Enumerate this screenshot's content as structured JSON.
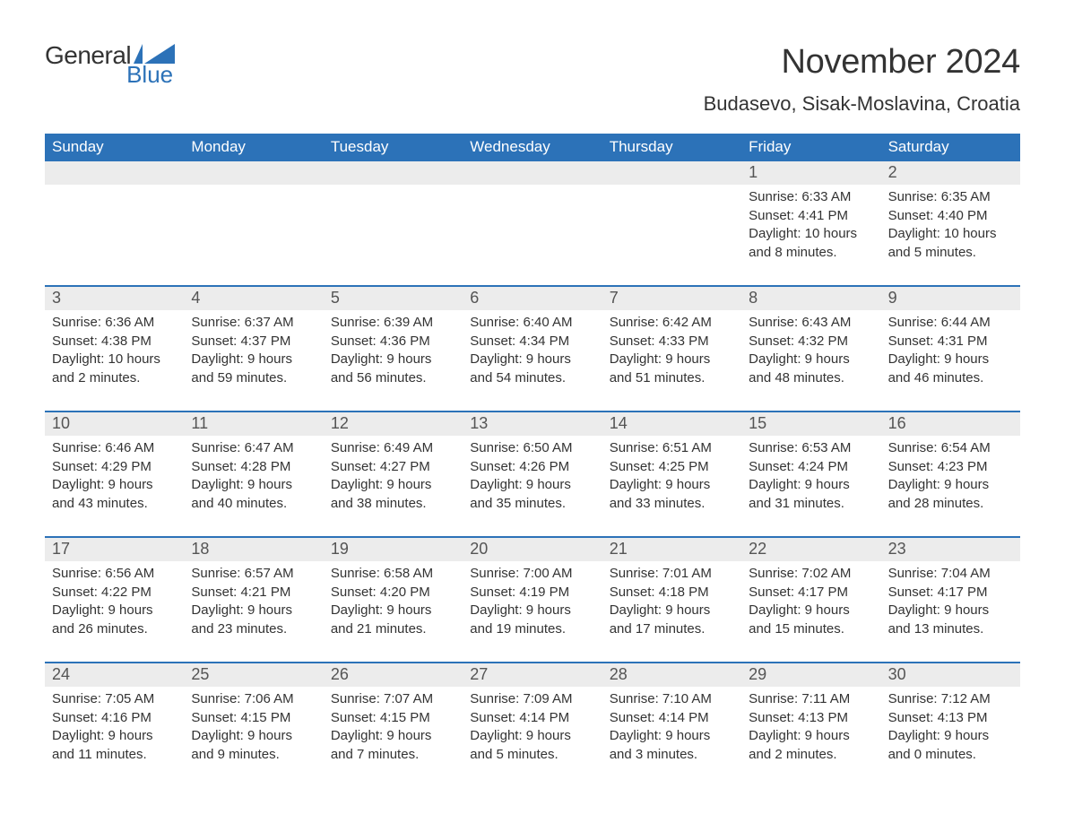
{
  "branding": {
    "logo_word1": "General",
    "logo_word2": "Blue",
    "logo_word1_color": "#333333",
    "logo_word2_color": "#2C72B8",
    "flag_color": "#2C72B8"
  },
  "header": {
    "month_title": "November 2024",
    "location": "Budasevo, Sisak-Moslavina, Croatia"
  },
  "colors": {
    "header_bg": "#2C72B8",
    "header_text": "#ffffff",
    "daynum_bg": "#ececec",
    "daynum_text": "#545454",
    "body_text": "#333333",
    "divider": "#2C72B8",
    "page_bg": "#ffffff"
  },
  "typography": {
    "month_title_fontsize": 38,
    "location_fontsize": 22,
    "weekday_fontsize": 17,
    "daynum_fontsize": 18,
    "body_fontsize": 15
  },
  "calendar": {
    "type": "table",
    "columns": [
      "Sunday",
      "Monday",
      "Tuesday",
      "Wednesday",
      "Thursday",
      "Friday",
      "Saturday"
    ],
    "weeks": [
      [
        {
          "day": "",
          "sunrise": "",
          "sunset": "",
          "daylight": ""
        },
        {
          "day": "",
          "sunrise": "",
          "sunset": "",
          "daylight": ""
        },
        {
          "day": "",
          "sunrise": "",
          "sunset": "",
          "daylight": ""
        },
        {
          "day": "",
          "sunrise": "",
          "sunset": "",
          "daylight": ""
        },
        {
          "day": "",
          "sunrise": "",
          "sunset": "",
          "daylight": ""
        },
        {
          "day": "1",
          "sunrise": "Sunrise: 6:33 AM",
          "sunset": "Sunset: 4:41 PM",
          "daylight": "Daylight: 10 hours and 8 minutes."
        },
        {
          "day": "2",
          "sunrise": "Sunrise: 6:35 AM",
          "sunset": "Sunset: 4:40 PM",
          "daylight": "Daylight: 10 hours and 5 minutes."
        }
      ],
      [
        {
          "day": "3",
          "sunrise": "Sunrise: 6:36 AM",
          "sunset": "Sunset: 4:38 PM",
          "daylight": "Daylight: 10 hours and 2 minutes."
        },
        {
          "day": "4",
          "sunrise": "Sunrise: 6:37 AM",
          "sunset": "Sunset: 4:37 PM",
          "daylight": "Daylight: 9 hours and 59 minutes."
        },
        {
          "day": "5",
          "sunrise": "Sunrise: 6:39 AM",
          "sunset": "Sunset: 4:36 PM",
          "daylight": "Daylight: 9 hours and 56 minutes."
        },
        {
          "day": "6",
          "sunrise": "Sunrise: 6:40 AM",
          "sunset": "Sunset: 4:34 PM",
          "daylight": "Daylight: 9 hours and 54 minutes."
        },
        {
          "day": "7",
          "sunrise": "Sunrise: 6:42 AM",
          "sunset": "Sunset: 4:33 PM",
          "daylight": "Daylight: 9 hours and 51 minutes."
        },
        {
          "day": "8",
          "sunrise": "Sunrise: 6:43 AM",
          "sunset": "Sunset: 4:32 PM",
          "daylight": "Daylight: 9 hours and 48 minutes."
        },
        {
          "day": "9",
          "sunrise": "Sunrise: 6:44 AM",
          "sunset": "Sunset: 4:31 PM",
          "daylight": "Daylight: 9 hours and 46 minutes."
        }
      ],
      [
        {
          "day": "10",
          "sunrise": "Sunrise: 6:46 AM",
          "sunset": "Sunset: 4:29 PM",
          "daylight": "Daylight: 9 hours and 43 minutes."
        },
        {
          "day": "11",
          "sunrise": "Sunrise: 6:47 AM",
          "sunset": "Sunset: 4:28 PM",
          "daylight": "Daylight: 9 hours and 40 minutes."
        },
        {
          "day": "12",
          "sunrise": "Sunrise: 6:49 AM",
          "sunset": "Sunset: 4:27 PM",
          "daylight": "Daylight: 9 hours and 38 minutes."
        },
        {
          "day": "13",
          "sunrise": "Sunrise: 6:50 AM",
          "sunset": "Sunset: 4:26 PM",
          "daylight": "Daylight: 9 hours and 35 minutes."
        },
        {
          "day": "14",
          "sunrise": "Sunrise: 6:51 AM",
          "sunset": "Sunset: 4:25 PM",
          "daylight": "Daylight: 9 hours and 33 minutes."
        },
        {
          "day": "15",
          "sunrise": "Sunrise: 6:53 AM",
          "sunset": "Sunset: 4:24 PM",
          "daylight": "Daylight: 9 hours and 31 minutes."
        },
        {
          "day": "16",
          "sunrise": "Sunrise: 6:54 AM",
          "sunset": "Sunset: 4:23 PM",
          "daylight": "Daylight: 9 hours and 28 minutes."
        }
      ],
      [
        {
          "day": "17",
          "sunrise": "Sunrise: 6:56 AM",
          "sunset": "Sunset: 4:22 PM",
          "daylight": "Daylight: 9 hours and 26 minutes."
        },
        {
          "day": "18",
          "sunrise": "Sunrise: 6:57 AM",
          "sunset": "Sunset: 4:21 PM",
          "daylight": "Daylight: 9 hours and 23 minutes."
        },
        {
          "day": "19",
          "sunrise": "Sunrise: 6:58 AM",
          "sunset": "Sunset: 4:20 PM",
          "daylight": "Daylight: 9 hours and 21 minutes."
        },
        {
          "day": "20",
          "sunrise": "Sunrise: 7:00 AM",
          "sunset": "Sunset: 4:19 PM",
          "daylight": "Daylight: 9 hours and 19 minutes."
        },
        {
          "day": "21",
          "sunrise": "Sunrise: 7:01 AM",
          "sunset": "Sunset: 4:18 PM",
          "daylight": "Daylight: 9 hours and 17 minutes."
        },
        {
          "day": "22",
          "sunrise": "Sunrise: 7:02 AM",
          "sunset": "Sunset: 4:17 PM",
          "daylight": "Daylight: 9 hours and 15 minutes."
        },
        {
          "day": "23",
          "sunrise": "Sunrise: 7:04 AM",
          "sunset": "Sunset: 4:17 PM",
          "daylight": "Daylight: 9 hours and 13 minutes."
        }
      ],
      [
        {
          "day": "24",
          "sunrise": "Sunrise: 7:05 AM",
          "sunset": "Sunset: 4:16 PM",
          "daylight": "Daylight: 9 hours and 11 minutes."
        },
        {
          "day": "25",
          "sunrise": "Sunrise: 7:06 AM",
          "sunset": "Sunset: 4:15 PM",
          "daylight": "Daylight: 9 hours and 9 minutes."
        },
        {
          "day": "26",
          "sunrise": "Sunrise: 7:07 AM",
          "sunset": "Sunset: 4:15 PM",
          "daylight": "Daylight: 9 hours and 7 minutes."
        },
        {
          "day": "27",
          "sunrise": "Sunrise: 7:09 AM",
          "sunset": "Sunset: 4:14 PM",
          "daylight": "Daylight: 9 hours and 5 minutes."
        },
        {
          "day": "28",
          "sunrise": "Sunrise: 7:10 AM",
          "sunset": "Sunset: 4:14 PM",
          "daylight": "Daylight: 9 hours and 3 minutes."
        },
        {
          "day": "29",
          "sunrise": "Sunrise: 7:11 AM",
          "sunset": "Sunset: 4:13 PM",
          "daylight": "Daylight: 9 hours and 2 minutes."
        },
        {
          "day": "30",
          "sunrise": "Sunrise: 7:12 AM",
          "sunset": "Sunset: 4:13 PM",
          "daylight": "Daylight: 9 hours and 0 minutes."
        }
      ]
    ]
  }
}
